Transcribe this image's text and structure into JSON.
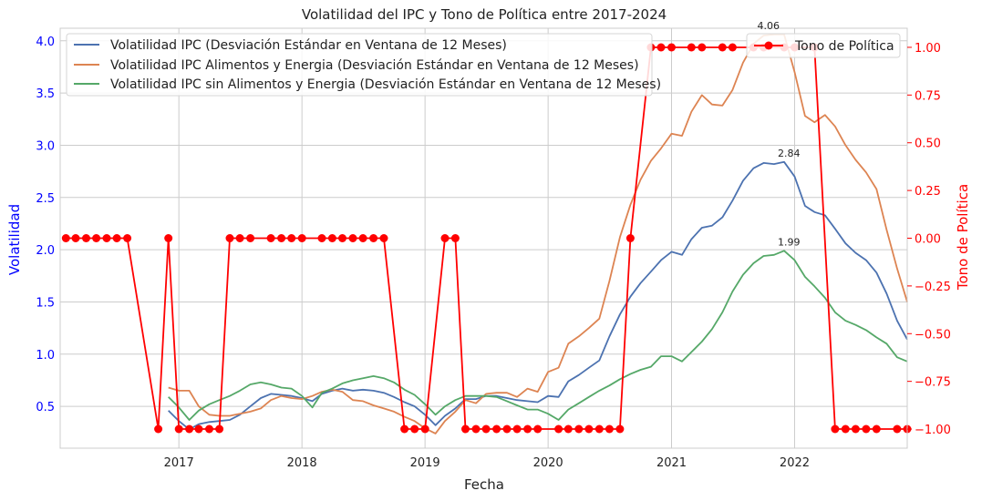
{
  "chart_data": {
    "type": "line",
    "title": "Volatilidad del IPC y Tono de Política entre 2017-2024",
    "xlabel": "Fecha",
    "ylabel_left": "Volatilidad",
    "ylabel_right": "Tono de Política",
    "xlim": [
      "2016-01-15",
      "2022-12-01"
    ],
    "ylim_left": [
      0.1,
      4.12
    ],
    "ylim_right": [
      -1.1,
      1.1
    ],
    "grid": true,
    "colors": {
      "left_axis": "#0000ff",
      "right_axis": "#ff0000",
      "series": [
        "#4c72b0",
        "#dd8452",
        "#55a868",
        "#ff0000"
      ]
    },
    "x_ticks": [
      "2017",
      "2018",
      "2019",
      "2020",
      "2021",
      "2022"
    ],
    "y_ticks_left": [
      "0.5",
      "1.0",
      "1.5",
      "2.0",
      "2.5",
      "3.0",
      "3.5",
      "4.0"
    ],
    "y_ticks_right": [
      "−1.00",
      "−0.75",
      "−0.50",
      "−0.25",
      "0.00",
      "0.25",
      "0.50",
      "0.75",
      "1.00"
    ],
    "legend_left": {
      "placement": "upper-left",
      "entries": [
        "Volatilidad IPC (Desviación Estándar en Ventana de 12 Meses)",
        "Volatilidad IPC Alimentos y Energia (Desviación Estándar en Ventana de 12 Meses)",
        "Volatilidad IPC sin Alimentos y Energia (Desviación Estándar en Ventana de 12 Meses)"
      ]
    },
    "legend_right": {
      "placement": "upper-right",
      "entries": [
        "Tono de Política"
      ]
    },
    "annotations": [
      {
        "text": "2.84",
        "x": "2021-12-01",
        "y": 2.84
      },
      {
        "text": "1.99",
        "x": "2021-12-01",
        "y": 1.99
      },
      {
        "text": "4.06",
        "x": "2021-10-01",
        "y": 4.06
      }
    ],
    "volatility_dates": [
      "2016-12-01",
      "2017-01-01",
      "2017-02-01",
      "2017-03-01",
      "2017-04-01",
      "2017-05-01",
      "2017-06-01",
      "2017-07-01",
      "2017-08-01",
      "2017-09-01",
      "2017-10-01",
      "2017-11-01",
      "2017-12-01",
      "2018-01-01",
      "2018-02-01",
      "2018-03-01",
      "2018-04-01",
      "2018-05-01",
      "2018-06-01",
      "2018-07-01",
      "2018-08-01",
      "2018-09-01",
      "2018-10-01",
      "2018-11-01",
      "2018-12-01",
      "2019-01-01",
      "2019-02-01",
      "2019-03-01",
      "2019-04-01",
      "2019-05-01",
      "2019-06-01",
      "2019-07-01",
      "2019-08-01",
      "2019-09-01",
      "2019-10-01",
      "2019-11-01",
      "2019-12-01",
      "2020-01-01",
      "2020-02-01",
      "2020-03-01",
      "2020-04-01",
      "2020-05-01",
      "2020-06-01",
      "2020-07-01",
      "2020-08-01",
      "2020-09-01",
      "2020-10-01",
      "2020-11-01",
      "2020-12-01",
      "2021-01-01",
      "2021-02-01",
      "2021-03-01",
      "2021-04-01",
      "2021-05-01",
      "2021-06-01",
      "2021-07-01",
      "2021-08-01",
      "2021-09-01",
      "2021-10-01",
      "2021-11-01",
      "2021-12-01",
      "2022-01-01",
      "2022-02-01",
      "2022-03-01",
      "2022-04-01",
      "2022-05-01",
      "2022-06-01",
      "2022-07-01",
      "2022-08-01",
      "2022-09-01",
      "2022-10-01",
      "2022-11-01",
      "2022-12-01"
    ],
    "series": [
      {
        "name": "Volatilidad IPC (Desviación Estándar en Ventana de 12 Meses)",
        "values": [
          0.46,
          0.36,
          0.28,
          0.33,
          0.35,
          0.36,
          0.37,
          0.42,
          0.5,
          0.58,
          0.62,
          0.61,
          0.6,
          0.58,
          0.55,
          0.62,
          0.65,
          0.67,
          0.65,
          0.66,
          0.65,
          0.63,
          0.59,
          0.54,
          0.5,
          0.42,
          0.32,
          0.41,
          0.48,
          0.57,
          0.57,
          0.6,
          0.6,
          0.58,
          0.56,
          0.55,
          0.54,
          0.6,
          0.59,
          0.74,
          0.8,
          0.87,
          0.94,
          1.17,
          1.38,
          1.55,
          1.68,
          1.79,
          1.9,
          1.98,
          1.95,
          2.1,
          2.21,
          2.23,
          2.31,
          2.47,
          2.66,
          2.78,
          2.83,
          2.82,
          2.84,
          2.7,
          2.42,
          2.36,
          2.33,
          2.2,
          2.06,
          1.97,
          1.9,
          1.78,
          1.58,
          1.32,
          1.14
        ]
      },
      {
        "name": "Volatilidad IPC Alimentos y Energia (Desviación Estándar en Ventana de 12 Meses)",
        "values": [
          0.68,
          0.65,
          0.65,
          0.5,
          0.42,
          0.41,
          0.41,
          0.43,
          0.45,
          0.48,
          0.56,
          0.6,
          0.58,
          0.57,
          0.6,
          0.64,
          0.66,
          0.64,
          0.56,
          0.55,
          0.51,
          0.48,
          0.45,
          0.4,
          0.36,
          0.29,
          0.24,
          0.36,
          0.45,
          0.56,
          0.53,
          0.62,
          0.63,
          0.63,
          0.59,
          0.67,
          0.64,
          0.83,
          0.87,
          1.1,
          1.17,
          1.25,
          1.34,
          1.7,
          2.12,
          2.43,
          2.67,
          2.85,
          2.97,
          3.11,
          3.09,
          3.32,
          3.48,
          3.39,
          3.38,
          3.53,
          3.79,
          3.97,
          4.05,
          4.06,
          4.06,
          3.7,
          3.28,
          3.22,
          3.29,
          3.18,
          3.0,
          2.86,
          2.74,
          2.58,
          2.19,
          1.82,
          1.5
        ]
      },
      {
        "name": "Volatilidad IPC sin Alimentos y Energia (Desviación Estándar en Ventana de 12 Meses)",
        "values": [
          0.59,
          0.49,
          0.37,
          0.46,
          0.52,
          0.56,
          0.6,
          0.65,
          0.71,
          0.73,
          0.71,
          0.68,
          0.67,
          0.6,
          0.49,
          0.63,
          0.67,
          0.72,
          0.75,
          0.77,
          0.79,
          0.77,
          0.73,
          0.66,
          0.61,
          0.52,
          0.42,
          0.5,
          0.56,
          0.6,
          0.6,
          0.6,
          0.59,
          0.55,
          0.51,
          0.47,
          0.47,
          0.43,
          0.37,
          0.47,
          0.53,
          0.59,
          0.65,
          0.7,
          0.76,
          0.81,
          0.85,
          0.88,
          0.98,
          0.98,
          0.93,
          1.02,
          1.12,
          1.24,
          1.4,
          1.6,
          1.76,
          1.87,
          1.94,
          1.95,
          1.99,
          1.9,
          1.74,
          1.65,
          1.54,
          1.4,
          1.32,
          1.28,
          1.23,
          1.16,
          1.1,
          0.97,
          0.93
        ]
      },
      {
        "name": "Tono de Política",
        "axis": "right",
        "dates": [
          "2016-02-01",
          "2016-03-01",
          "2016-04-01",
          "2016-05-01",
          "2016-06-01",
          "2016-07-01",
          "2016-08-01",
          "2016-11-01",
          "2016-12-01",
          "2017-01-01",
          "2017-02-01",
          "2017-03-01",
          "2017-04-01",
          "2017-05-01",
          "2017-06-01",
          "2017-07-01",
          "2017-08-01",
          "2017-10-01",
          "2017-11-01",
          "2017-12-01",
          "2018-01-01",
          "2018-03-01",
          "2018-04-01",
          "2018-05-01",
          "2018-06-01",
          "2018-07-01",
          "2018-08-01",
          "2018-09-01",
          "2018-11-01",
          "2018-12-01",
          "2019-01-01",
          "2019-03-01",
          "2019-04-01",
          "2019-05-01",
          "2019-06-01",
          "2019-07-01",
          "2019-08-01",
          "2019-09-01",
          "2019-10-01",
          "2019-11-01",
          "2019-12-01",
          "2020-02-01",
          "2020-03-01",
          "2020-04-01",
          "2020-05-01",
          "2020-06-01",
          "2020-07-01",
          "2020-08-01",
          "2020-09-01",
          "2020-11-01",
          "2020-12-01",
          "2021-01-01",
          "2021-03-01",
          "2021-04-01",
          "2021-06-01",
          "2021-07-01",
          "2021-09-01",
          "2021-10-01",
          "2021-12-01",
          "2022-01-01",
          "2022-03-01",
          "2022-05-01",
          "2022-06-01",
          "2022-07-01",
          "2022-08-01",
          "2022-09-01",
          "2022-11-01",
          "2022-12-01"
        ],
        "values": [
          0,
          0,
          0,
          0,
          0,
          0,
          0,
          -1,
          0,
          -1,
          -1,
          -1,
          -1,
          -1,
          0,
          0,
          0,
          0,
          0,
          0,
          0,
          0,
          0,
          0,
          0,
          0,
          0,
          0,
          -1,
          -1,
          -1,
          0,
          0,
          -1,
          -1,
          -1,
          -1,
          -1,
          -1,
          -1,
          -1,
          -1,
          -1,
          -1,
          -1,
          -1,
          -1,
          -1,
          0,
          1,
          1,
          1,
          1,
          1,
          1,
          1,
          1,
          1,
          1,
          1,
          1,
          -1,
          -1,
          -1,
          -1,
          -1,
          -1,
          -1
        ]
      }
    ]
  }
}
